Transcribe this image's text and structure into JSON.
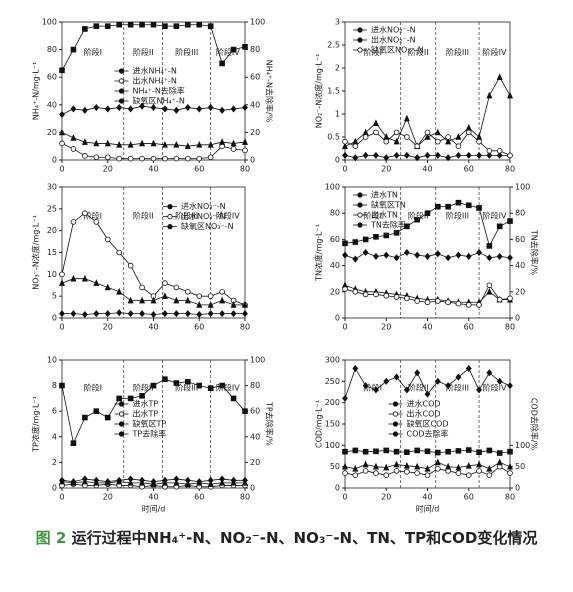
{
  "caption_label": "图 2",
  "caption_text": "运行过程中NH₄⁺-N、NO₂⁻-N、NO₃⁻-N、TN、TP和COD变化情况",
  "chart_data": [
    {
      "type": "line",
      "ylabel": "NH₄⁺-N/mg·L⁻¹",
      "y2label": "NH₄⁺-N去除率/%",
      "legend": "center",
      "phases": [
        "阶段I",
        "阶段II",
        "阶段III",
        "阶段IV"
      ],
      "phase_bounds": [
        27,
        44,
        65
      ],
      "x": [
        0,
        5,
        10,
        15,
        20,
        25,
        30,
        35,
        40,
        45,
        50,
        55,
        60,
        65,
        70,
        75,
        80
      ],
      "xlim": [
        0,
        80
      ],
      "xticks": [
        0,
        20,
        40,
        60,
        80
      ],
      "ylim": [
        0,
        100
      ],
      "yticks": [
        0,
        20,
        40,
        60,
        80,
        100
      ],
      "y2lim": [
        0,
        100
      ],
      "y2ticks": [
        0,
        20,
        40,
        60,
        80,
        100
      ],
      "series": [
        {
          "name": "进水NH₄⁺-N",
          "color": "#111",
          "marker": "diamond",
          "values": [
            33,
            37,
            36,
            38,
            37,
            38,
            37,
            39,
            38,
            37,
            36,
            38,
            37,
            38,
            36,
            37,
            38
          ]
        },
        {
          "name": "出水NH₄⁺-N",
          "color": "#111",
          "marker": "circle-open",
          "values": [
            12,
            8,
            3,
            2,
            2,
            1,
            1,
            1,
            1,
            1,
            1,
            1,
            1,
            2,
            10,
            8,
            7
          ]
        },
        {
          "name": "NH₄⁺-N去除率",
          "color": "#111",
          "marker": "square",
          "axis": "y2",
          "values": [
            65,
            80,
            95,
            97,
            97,
            98,
            98,
            98,
            98,
            97,
            97,
            98,
            98,
            97,
            70,
            80,
            82
          ]
        },
        {
          "name": "缺氧区NH₄⁺-N",
          "color": "#111",
          "marker": "triangle",
          "values": [
            20,
            16,
            13,
            12,
            12,
            11,
            11,
            12,
            12,
            11,
            11,
            10,
            11,
            11,
            13,
            12,
            13
          ]
        }
      ]
    },
    {
      "type": "line",
      "ylabel": "NO₂⁻-N浓度/mg·L⁻¹",
      "legend": "upper left",
      "phases": [
        "阶段I",
        "阶段II",
        "阶段III",
        "阶段IV"
      ],
      "phase_bounds": [
        27,
        44,
        65
      ],
      "x": [
        0,
        5,
        10,
        15,
        20,
        25,
        30,
        35,
        40,
        45,
        50,
        55,
        60,
        65,
        70,
        75,
        80
      ],
      "xlim": [
        0,
        80
      ],
      "xticks": [
        0,
        20,
        40,
        60,
        80
      ],
      "ylim": [
        0,
        3
      ],
      "yticks": [
        0,
        0.5,
        1,
        1.5,
        2,
        2.5,
        3
      ],
      "series": [
        {
          "name": "进水NO₂⁻-N",
          "color": "#111",
          "marker": "diamond",
          "values": [
            0.1,
            0.05,
            0.1,
            0.1,
            0.05,
            0.1,
            0.1,
            0.05,
            0.1,
            0.1,
            0.05,
            0.1,
            0.1,
            0.1,
            0.1,
            0.1,
            0.1
          ]
        },
        {
          "name": "出水NO₂⁻-N",
          "color": "#111",
          "marker": "triangle",
          "values": [
            0.3,
            0.4,
            0.6,
            0.8,
            0.5,
            0.4,
            0.9,
            0.3,
            0.5,
            0.6,
            0.4,
            0.5,
            0.7,
            0.5,
            1.4,
            1.8,
            1.4
          ]
        },
        {
          "name": "缺氧区NO₂⁻-N",
          "color": "#111",
          "marker": "circle-open",
          "values": [
            0.4,
            0.3,
            0.5,
            0.6,
            0.4,
            0.6,
            0.5,
            0.3,
            0.6,
            0.4,
            0.5,
            0.3,
            0.6,
            0.4,
            0.2,
            0.2,
            0.1
          ]
        }
      ]
    },
    {
      "type": "line",
      "ylabel": "NO₃⁻-N浓度/mg·L⁻¹",
      "legend": "upper right",
      "phases": [
        "阶段I",
        "阶段II",
        "阶段III",
        "阶段IV"
      ],
      "phase_bounds": [
        27,
        44,
        65
      ],
      "x": [
        0,
        5,
        10,
        15,
        20,
        25,
        30,
        35,
        40,
        45,
        50,
        55,
        60,
        65,
        70,
        75,
        80
      ],
      "xlim": [
        0,
        80
      ],
      "xticks": [
        0,
        20,
        40,
        60,
        80
      ],
      "ylim": [
        0,
        30
      ],
      "yticks": [
        0,
        5,
        10,
        15,
        20,
        25,
        30
      ],
      "series": [
        {
          "name": "进水NO₃⁻-N",
          "color": "#111",
          "marker": "diamond",
          "values": [
            1,
            1,
            0.8,
            1,
            1,
            1.2,
            1,
            1,
            0.8,
            1,
            1,
            1,
            0.8,
            1,
            1,
            1,
            1
          ]
        },
        {
          "name": "出水NO₃⁻-N",
          "color": "#111",
          "marker": "circle-open",
          "values": [
            10,
            22,
            24,
            22,
            18,
            15,
            12,
            7,
            5,
            8,
            7,
            6,
            5,
            5,
            6,
            4,
            3
          ]
        },
        {
          "name": "缺氧区NO₃⁻-N",
          "color": "#111",
          "marker": "triangle",
          "values": [
            8,
            9,
            9,
            8,
            7,
            6,
            4,
            4,
            4,
            5,
            4,
            4,
            3,
            3,
            4,
            3,
            3
          ]
        }
      ]
    },
    {
      "type": "line",
      "ylabel": "TN浓度/mg·L⁻¹",
      "y2label": "TN去除率/%",
      "legend": "upper left",
      "phases": [
        "阶段I",
        "阶段II",
        "阶段III",
        "阶段IV"
      ],
      "phase_bounds": [
        27,
        44,
        65
      ],
      "x": [
        0,
        5,
        10,
        15,
        20,
        25,
        30,
        35,
        40,
        45,
        50,
        55,
        60,
        65,
        70,
        75,
        80
      ],
      "xlim": [
        0,
        80
      ],
      "xticks": [
        0,
        20,
        40,
        60,
        80
      ],
      "ylim": [
        0,
        100
      ],
      "yticks": [
        0,
        20,
        40,
        60,
        80,
        100
      ],
      "y2lim": [
        0,
        100
      ],
      "y2ticks": [
        0,
        20,
        40,
        60,
        80,
        100
      ],
      "series": [
        {
          "name": "进水TN",
          "color": "#111",
          "marker": "diamond",
          "values": [
            48,
            45,
            50,
            47,
            48,
            46,
            50,
            48,
            47,
            49,
            46,
            48,
            47,
            50,
            46,
            47,
            46
          ]
        },
        {
          "name": "缺氧区TN",
          "color": "#111",
          "marker": "triangle",
          "values": [
            25,
            22,
            20,
            20,
            19,
            18,
            17,
            15,
            14,
            14,
            13,
            12,
            12,
            12,
            20,
            14,
            14
          ]
        },
        {
          "name": "出水TN",
          "color": "#111",
          "marker": "circle-open",
          "values": [
            22,
            20,
            18,
            18,
            17,
            16,
            15,
            13,
            12,
            13,
            12,
            11,
            10,
            10,
            25,
            14,
            15
          ]
        },
        {
          "name": "TN去除率",
          "color": "#111",
          "marker": "square",
          "axis": "y2",
          "values": [
            57,
            58,
            60,
            62,
            63,
            65,
            70,
            75,
            80,
            85,
            85,
            88,
            86,
            84,
            55,
            70,
            74
          ]
        }
      ]
    },
    {
      "type": "line",
      "ylabel": "TP浓度/mg·L⁻¹",
      "y2label": "TP去除率/%",
      "xlabel": "时间/d",
      "legend": "center",
      "phases": [
        "阶段I",
        "阶段II",
        "阶段III",
        "阶段IV"
      ],
      "phase_bounds": [
        27,
        44,
        65
      ],
      "x": [
        0,
        5,
        10,
        15,
        20,
        25,
        30,
        35,
        40,
        45,
        50,
        55,
        60,
        65,
        70,
        75,
        80
      ],
      "xlim": [
        0,
        80
      ],
      "xticks": [
        0,
        20,
        40,
        60,
        80
      ],
      "ylim": [
        0,
        10
      ],
      "yticks": [
        0,
        2,
        4,
        6,
        8,
        10
      ],
      "y2lim": [
        0,
        100
      ],
      "y2ticks": [
        0,
        20,
        40,
        60,
        80,
        100
      ],
      "series": [
        {
          "name": "进水TP",
          "color": "#111",
          "marker": "diamond",
          "values": [
            0.6,
            0.5,
            0.7,
            0.6,
            0.5,
            0.6,
            0.7,
            0.6,
            0.5,
            0.6,
            0.7,
            0.6,
            0.5,
            0.6,
            0.7,
            0.6,
            0.6
          ]
        },
        {
          "name": "出水TP",
          "color": "#111",
          "marker": "circle-open",
          "values": [
            0.2,
            0.3,
            0.2,
            0.2,
            0.3,
            0.2,
            0.2,
            0.1,
            0.2,
            0.1,
            0.1,
            0.2,
            0.1,
            0.1,
            0.2,
            0.2,
            0.2
          ]
        },
        {
          "name": "缺氧区TP",
          "color": "#111",
          "marker": "triangle",
          "values": [
            0.5,
            0.4,
            0.5,
            0.4,
            0.4,
            0.5,
            0.4,
            0.4,
            0.3,
            0.4,
            0.4,
            0.3,
            0.4,
            0.3,
            0.4,
            0.4,
            0.4
          ]
        },
        {
          "name": "TP去除率",
          "color": "#111",
          "marker": "square",
          "axis": "y2",
          "values": [
            80,
            35,
            55,
            60,
            55,
            70,
            70,
            72,
            80,
            85,
            82,
            83,
            80,
            78,
            80,
            70,
            60
          ]
        }
      ]
    },
    {
      "type": "line",
      "ylabel": "COD/mg·L⁻¹",
      "y2label": "COD去除率/%",
      "xlabel": "时间/d",
      "legend": "center",
      "phases": [
        "阶段I",
        "阶段II",
        "阶段III",
        "阶段IV"
      ],
      "phase_bounds": [
        27,
        44,
        65
      ],
      "x": [
        0,
        5,
        10,
        15,
        20,
        25,
        30,
        35,
        40,
        45,
        50,
        55,
        60,
        65,
        70,
        75,
        80
      ],
      "xlim": [
        0,
        80
      ],
      "xticks": [
        0,
        20,
        40,
        60,
        80
      ],
      "ylim": [
        0,
        300
      ],
      "yticks": [
        0,
        50,
        100,
        150,
        200,
        250,
        300
      ],
      "y2lim": [
        0,
        300
      ],
      "y2ticks": [
        0,
        50,
        100
      ],
      "series": [
        {
          "name": "进水COD",
          "color": "#111",
          "marker": "diamond",
          "values": [
            210,
            280,
            240,
            230,
            250,
            260,
            230,
            270,
            220,
            250,
            240,
            260,
            280,
            230,
            270,
            250,
            240
          ]
        },
        {
          "name": "出水COD",
          "color": "#111",
          "marker": "circle-open",
          "values": [
            35,
            30,
            40,
            35,
            30,
            40,
            38,
            35,
            30,
            45,
            40,
            35,
            30,
            40,
            30,
            50,
            35
          ]
        },
        {
          "name": "缺氧区COD",
          "color": "#111",
          "marker": "triangle",
          "values": [
            50,
            45,
            55,
            50,
            48,
            55,
            52,
            50,
            45,
            60,
            50,
            48,
            52,
            55,
            45,
            60,
            50
          ]
        },
        {
          "name": "COD去除率",
          "color": "#111",
          "marker": "square",
          "axis": "y2",
          "values": [
            85,
            88,
            85,
            86,
            88,
            85,
            84,
            88,
            86,
            83,
            85,
            87,
            89,
            84,
            88,
            82,
            85
          ]
        }
      ]
    }
  ]
}
